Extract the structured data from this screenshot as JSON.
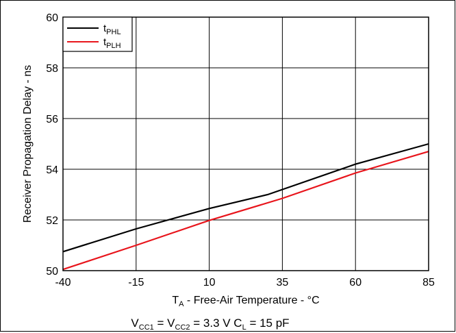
{
  "chart_data": {
    "type": "line",
    "x": [
      -40,
      -15,
      10,
      35,
      60,
      85
    ],
    "xticks": [
      "-40",
      "-15",
      "10",
      "35",
      "60",
      "85"
    ],
    "yticks": [
      "50",
      "52",
      "54",
      "56",
      "58",
      "60"
    ],
    "xlim": [
      -40,
      85
    ],
    "ylim": [
      50,
      60
    ],
    "grid": true,
    "legend_position": "top-left",
    "xlabel": {
      "main": "T",
      "sub": "A",
      "rest": " - Free-Air Temperature - °C"
    },
    "ylabel": "Receiver Propagation Delay - ns",
    "series": [
      {
        "name_main": "t",
        "name_sub": "PHL",
        "color": "#000000",
        "points": [
          [
            -40,
            50.75
          ],
          [
            -15,
            51.65
          ],
          [
            10,
            52.45
          ],
          [
            30,
            53.0
          ],
          [
            60,
            54.2
          ],
          [
            85,
            55.0
          ]
        ]
      },
      {
        "name_main": "t",
        "name_sub": "PLH",
        "color": "#e8141b",
        "points": [
          [
            -40,
            50.05
          ],
          [
            -15,
            51.0
          ],
          [
            10,
            51.98
          ],
          [
            35,
            52.85
          ],
          [
            60,
            53.85
          ],
          [
            85,
            54.7
          ]
        ]
      }
    ],
    "caption": {
      "v1": "V",
      "v1_sub": "CC1",
      "eq": " = ",
      "v2": "V",
      "v2_sub": "CC2",
      "value": " = 3.3 V  C",
      "cl_sub": "L",
      "cl_value": " = 15 pF"
    }
  }
}
